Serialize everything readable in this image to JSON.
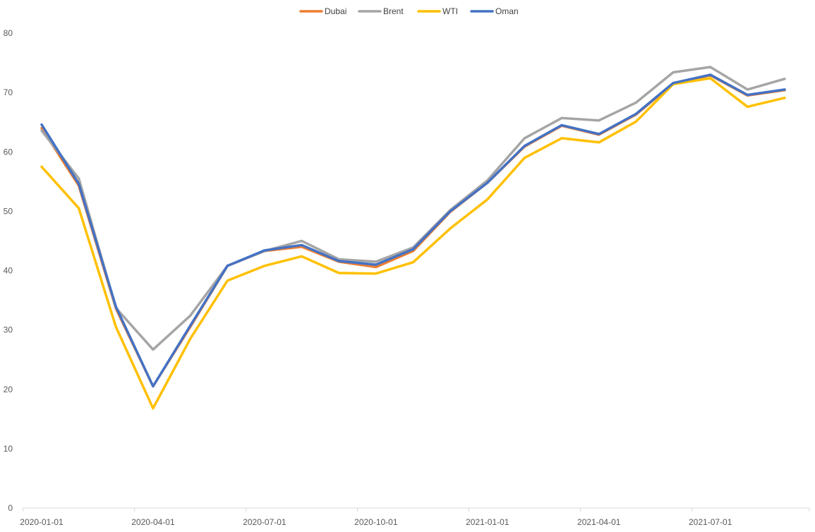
{
  "chart_data": {
    "type": "line",
    "title": "",
    "xlabel": "",
    "ylabel": "",
    "x": [
      "2020-01-01",
      "2020-02-01",
      "2020-03-01",
      "2020-04-01",
      "2020-05-01",
      "2020-06-01",
      "2020-07-01",
      "2020-08-01",
      "2020-09-01",
      "2020-10-01",
      "2020-11-01",
      "2020-12-01",
      "2021-01-01",
      "2021-02-01",
      "2021-03-01",
      "2021-04-01",
      "2021-05-01",
      "2021-06-01",
      "2021-07-01",
      "2021-08-01",
      "2021-09-01"
    ],
    "x_tick_labels": [
      "2020-01-01",
      "2020-04-01",
      "2020-07-01",
      "2020-10-01",
      "2021-01-01",
      "2021-04-01",
      "2021-07-01"
    ],
    "ylim": [
      0,
      80
    ],
    "y_ticks": [
      0,
      10,
      20,
      30,
      40,
      50,
      60,
      70,
      80
    ],
    "grid": false,
    "legend_position": "top",
    "series": [
      {
        "name": "Dubai",
        "color": "#ED7D31",
        "values": [
          64.0,
          54.3,
          33.6,
          20.5,
          30.5,
          40.8,
          43.3,
          44.0,
          41.5,
          40.6,
          43.3,
          49.9,
          54.8,
          60.9,
          64.4,
          62.9,
          66.3,
          71.5,
          72.9,
          69.5,
          70.4
        ]
      },
      {
        "name": "Brent",
        "color": "#A5A5A5",
        "values": [
          63.6,
          55.5,
          33.7,
          26.7,
          32.4,
          40.8,
          43.3,
          45.0,
          41.9,
          41.5,
          43.9,
          50.2,
          55.2,
          62.3,
          65.7,
          65.3,
          68.3,
          73.4,
          74.3,
          70.5,
          72.3
        ]
      },
      {
        "name": "WTI",
        "color": "#FFC000",
        "values": [
          57.5,
          50.5,
          30.5,
          16.8,
          28.5,
          38.3,
          40.8,
          42.4,
          39.6,
          39.5,
          41.4,
          47.1,
          52.0,
          59.0,
          62.3,
          61.6,
          65.1,
          71.4,
          72.4,
          67.6,
          69.1
        ]
      },
      {
        "name": "Oman",
        "color": "#4472C4",
        "values": [
          64.6,
          54.6,
          33.9,
          20.5,
          30.7,
          40.8,
          43.4,
          44.3,
          41.6,
          41.0,
          43.6,
          50.0,
          54.8,
          61.0,
          64.5,
          63.0,
          66.4,
          71.6,
          73.0,
          69.6,
          70.5
        ]
      }
    ]
  }
}
